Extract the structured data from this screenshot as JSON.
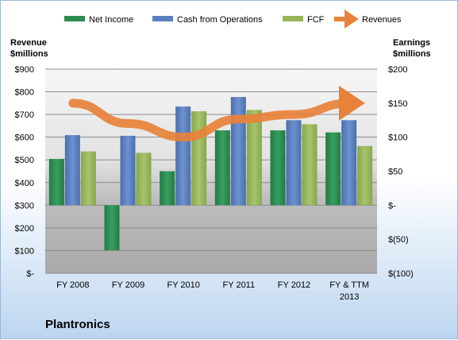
{
  "chart_data": {
    "type": "bar",
    "title": "",
    "company": "Plantronics",
    "left_axis": {
      "title_line1": "Revenue",
      "title_line2": "$millions",
      "range": [
        0,
        900
      ],
      "ticks": [
        0,
        100,
        200,
        300,
        400,
        500,
        600,
        700,
        800,
        900
      ],
      "tick_labels": [
        "$-",
        "$100",
        "$200",
        "$300",
        "$400",
        "$500",
        "$600",
        "$700",
        "$800",
        "$900"
      ]
    },
    "right_axis": {
      "title_line1": "Earnings",
      "title_line2": "$millions",
      "range": [
        -100,
        200
      ],
      "ticks": [
        -100,
        -50,
        0,
        50,
        100,
        150,
        200
      ],
      "tick_labels": [
        "$(100)",
        "$(50)",
        "$-",
        "$50",
        "$100",
        "$150",
        "$200"
      ]
    },
    "categories": [
      {
        "line1": "FY 2008",
        "line2": ""
      },
      {
        "line1": "FY 2009",
        "line2": ""
      },
      {
        "line1": "FY 2010",
        "line2": ""
      },
      {
        "line1": "FY 2011",
        "line2": ""
      },
      {
        "line1": "FY 2012",
        "line2": ""
      },
      {
        "line1": "FY & TTM",
        "line2": "2013"
      }
    ],
    "series": [
      {
        "name": "Net Income",
        "axis": "right",
        "kind": "bar",
        "color": "#2e8b50",
        "values": [
          68,
          -66,
          50,
          110,
          110,
          107
        ]
      },
      {
        "name": "Cash from Operations",
        "axis": "right",
        "kind": "bar",
        "color": "#5b80c0",
        "values": [
          103,
          102,
          145,
          159,
          125,
          125
        ]
      },
      {
        "name": "FCF",
        "axis": "right",
        "kind": "bar",
        "color": "#96b55a",
        "values": [
          79,
          77,
          138,
          140,
          119,
          87
        ]
      },
      {
        "name": "Revenues",
        "axis": "left",
        "kind": "line",
        "color": "#e8823a",
        "values": [
          750,
          660,
          600,
          680,
          700,
          750
        ]
      }
    ],
    "legend_position": "top",
    "grid": true
  }
}
